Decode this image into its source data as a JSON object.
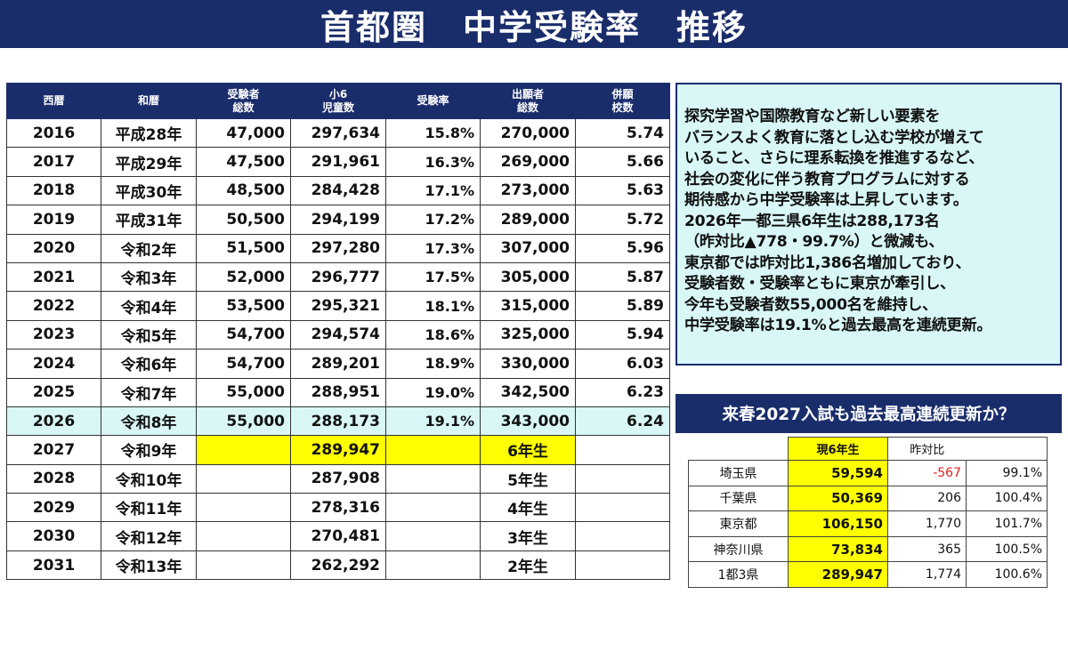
{
  "title": "首都圏　中学受験率　推移",
  "main_table": {
    "headers": [
      "西暦",
      "和暦",
      "受験者\n総数",
      "小6\n児童数",
      "受験率",
      "出願者\n総数",
      "併願\n校数"
    ],
    "rows": [
      [
        "2016",
        "平成28年",
        "47,000",
        "297,634",
        "15.8%",
        "270,000",
        "5.74"
      ],
      [
        "2017",
        "平成29年",
        "47,500",
        "291,961",
        "16.3%",
        "269,000",
        "5.66"
      ],
      [
        "2018",
        "平成30年",
        "48,500",
        "284,428",
        "17.1%",
        "273,000",
        "5.63"
      ],
      [
        "2019",
        "平成31年",
        "50,500",
        "294,199",
        "17.2%",
        "289,000",
        "5.72"
      ],
      [
        "2020",
        "令和2年",
        "51,500",
        "297,280",
        "17.3%",
        "307,000",
        "5.96"
      ],
      [
        "2021",
        "令和3年",
        "52,000",
        "296,777",
        "17.5%",
        "305,000",
        "5.87"
      ],
      [
        "2022",
        "令和4年",
        "53,500",
        "295,321",
        "18.1%",
        "315,000",
        "5.89"
      ],
      [
        "2023",
        "令和5年",
        "54,700",
        "294,574",
        "18.6%",
        "325,000",
        "5.94"
      ],
      [
        "2024",
        "令和6年",
        "54,700",
        "289,201",
        "18.9%",
        "330,000",
        "6.03"
      ],
      [
        "2025",
        "令和7年",
        "55,000",
        "288,951",
        "19.0%",
        "342,500",
        "6.23"
      ],
      [
        "2026",
        "令和8年",
        "55,000",
        "288,173",
        "19.1%",
        "343,000",
        "6.24"
      ],
      [
        "2027",
        "令和9年",
        "",
        "289,947",
        "",
        "6年生",
        ""
      ],
      [
        "2028",
        "令和10年",
        "",
        "287,908",
        "",
        "5年生",
        ""
      ],
      [
        "2029",
        "令和11年",
        "",
        "278,316",
        "",
        "4年生",
        ""
      ],
      [
        "2030",
        "令和12年",
        "",
        "270,481",
        "",
        "3年生",
        ""
      ],
      [
        "2031",
        "令和13年",
        "",
        "262,292",
        "",
        "2年生",
        ""
      ]
    ],
    "highlight_row": 10,
    "yellow_row": 11
  },
  "summary_lines": [
    "探究学習や国際教育など新しい要素を",
    "バランスよく教育に落とし込む学校が増えて",
    "いること、さらに理系転換を推進するなど、",
    "社会の変化に伴う教育プログラムに対する",
    "期待感から中学受験率は上昇しています。",
    "2026年一都三県6年生は288,173名",
    "（昨対比▲778・99.7%）と微減も、",
    "東京都では昨対比1,386名増加しており、",
    "受験者数・受験率ともに東京が牽引し、",
    "今年も受験者数55,000名を維持し、",
    "中学受験率は19.1%と過去最高を連続更新。"
  ],
  "forecast_title": "来春2027入試も過去最高連続更新か？",
  "pref_table": {
    "header_current": "現6年生",
    "header_yoy": "昨対比",
    "rows": [
      [
        "埼玉県",
        "59,594",
        "-567",
        "99.1%"
      ],
      [
        "千葉県",
        "50,369",
        "206",
        "100.4%"
      ],
      [
        "東京都",
        "106,150",
        "1,770",
        "101.7%"
      ],
      [
        "神奈川県",
        "73,834",
        "365",
        "100.5%"
      ],
      [
        "1都3県",
        "289,947",
        "1,774",
        "100.6%"
      ]
    ]
  },
  "colors": {
    "navy": "#1a2d6b",
    "highlight": "#d9f7f7",
    "yellow": "#ffff00",
    "negative": "#e02020"
  }
}
